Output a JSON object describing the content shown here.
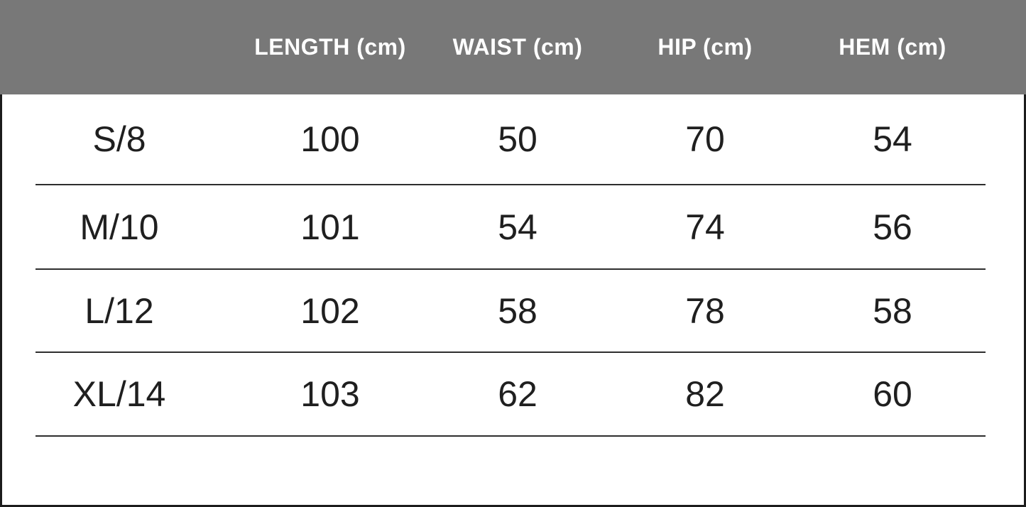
{
  "chart_data": {
    "type": "table",
    "columns": [
      "",
      "LENGTH (cm)",
      "WAIST (cm)",
      "HIP (cm)",
      "HEM (cm)"
    ],
    "rows": [
      [
        "S/8",
        100,
        50,
        70,
        54
      ],
      [
        "M/10",
        101,
        54,
        74,
        56
      ],
      [
        "L/12",
        102,
        58,
        78,
        58
      ],
      [
        "XL/14",
        103,
        62,
        82,
        60
      ]
    ],
    "layout_hints": {
      "header_style": "gray band, white bold uppercase labels",
      "row_dividers": "thin dark horizontal lines, inset from both edges",
      "outer_border": "black border on left, right and bottom of body only"
    }
  },
  "colors": {
    "header_bg": "#787878",
    "header_text": "#ffffff",
    "text_color": "#1f1f1f",
    "line_color": "#2e2e2e",
    "border_color": "#1c1c1c",
    "background": "#ffffff"
  }
}
